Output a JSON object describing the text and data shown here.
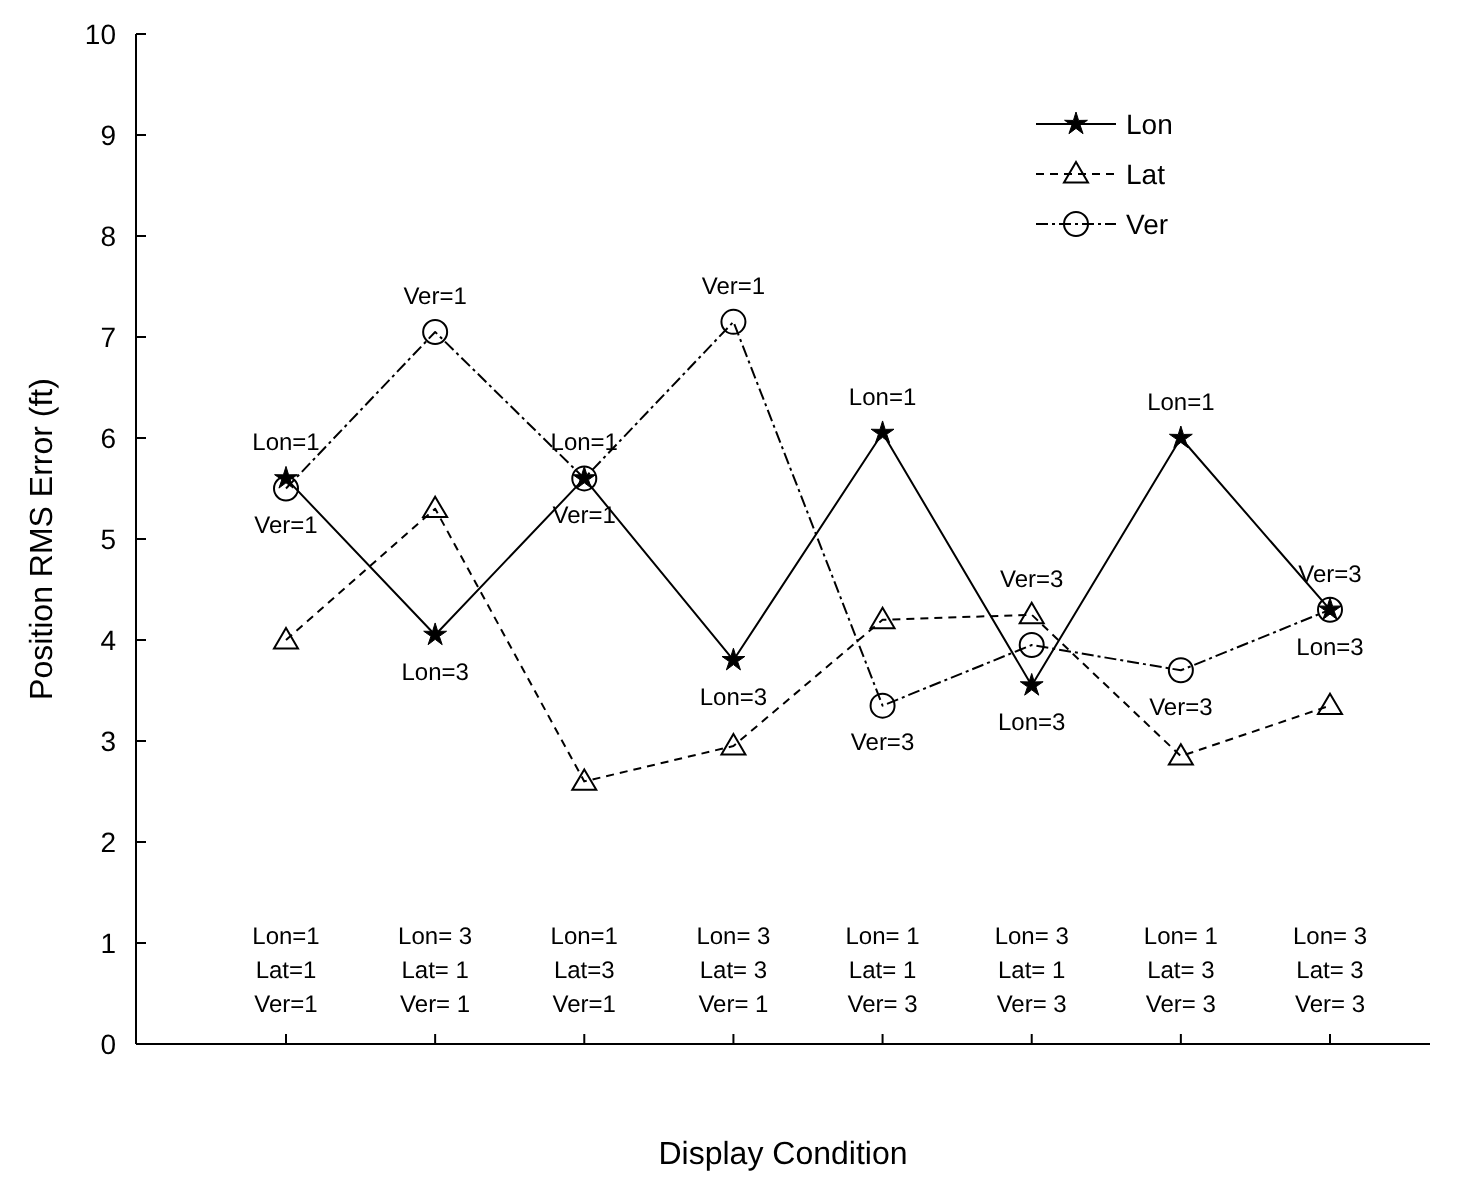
{
  "chart_data": {
    "type": "line",
    "xlabel": "Display Condition",
    "ylabel": "Position RMS Error (ft)",
    "categories": [
      "Lon=1\nLat=1\nVer=1",
      "Lon= 3\nLat= 1\nVer= 1",
      "Lon=1\nLat=3\nVer=1",
      "Lon= 3\nLat= 3\nVer= 1",
      "Lon= 1\nLat= 1\nVer= 3",
      "Lon= 3\nLat= 1\nVer= 3",
      "Lon= 1\nLat= 3\nVer= 3",
      "Lon= 3\nLat= 3\nVer= 3"
    ],
    "series": [
      {
        "name": "Lon",
        "color": "#000000",
        "marker": "star",
        "line_style": "solid",
        "values": [
          5.6,
          4.05,
          5.6,
          3.8,
          6.05,
          3.55,
          6.0,
          4.3
        ]
      },
      {
        "name": "Lat",
        "color": "#000000",
        "marker": "triangle",
        "line_style": "dashed",
        "values": [
          4.0,
          5.3,
          2.6,
          2.95,
          4.2,
          4.25,
          2.85,
          3.35
        ]
      },
      {
        "name": "Ver",
        "color": "#000000",
        "marker": "circle",
        "line_style": "dotted",
        "values": [
          5.5,
          7.05,
          5.6,
          7.15,
          3.35,
          3.95,
          3.7,
          4.3
        ]
      }
    ],
    "ylim": [
      0,
      10
    ],
    "yticks": [
      0,
      1,
      2,
      3,
      4,
      5,
      6,
      7,
      8,
      9,
      10
    ],
    "grid": false,
    "legend": "top right",
    "annotations": [
      {
        "text": "Lon=1",
        "x": "Lon=1\nLat=1\nVer=1",
        "y": 5.6
      },
      {
        "text": "Ver=1",
        "x": "Lon=1\nLat=1\nVer=1",
        "y": 5.5
      },
      {
        "text": "Ver=1",
        "x": "Lon= 3\nLat= 1\nVer= 1",
        "y": 7.05
      },
      {
        "text": "Lon=3",
        "x": "Lon= 3\nLat= 1\nVer= 1",
        "y": 4.05
      },
      {
        "text": "Lon=1",
        "x": "Lon=1\nLat=3\nVer=1",
        "y": 5.6
      },
      {
        "text": "Ver=1",
        "x": "Lon=1\nLat=3\nVer=1",
        "y": 5.6
      },
      {
        "text": "Ver=1",
        "x": "Lon= 3\nLat= 3\nVer= 1",
        "y": 7.15
      },
      {
        "text": "Lon=3",
        "x": "Lon= 3\nLat= 3\nVer= 1",
        "y": 3.8
      },
      {
        "text": "Lon=1",
        "x": "Lon= 1\nLat= 1\nVer= 3",
        "y": 6.05
      },
      {
        "text": "Ver=3",
        "x": "Lon= 1\nLat= 1\nVer= 3",
        "y": 3.35
      },
      {
        "text": "Ver=3",
        "x": "Lon= 3\nLat= 1\nVer= 3",
        "y": 3.95
      },
      {
        "text": "Lon=3",
        "x": "Lon= 3\nLat= 1\nVer= 3",
        "y": 3.55
      },
      {
        "text": "Lon=1",
        "x": "Lon= 1\nLat= 3\nVer= 3",
        "y": 6.0
      },
      {
        "text": "Ver=3",
        "x": "Lon= 1\nLat= 3\nVer= 3",
        "y": 3.7
      },
      {
        "text": "Ver=3",
        "x": "Lon= 3\nLat= 3\nVer= 3",
        "y": 4.3
      },
      {
        "text": "Lon=3",
        "x": "Lon= 3\nLat= 3\nVer= 3",
        "y": 4.3
      }
    ]
  }
}
